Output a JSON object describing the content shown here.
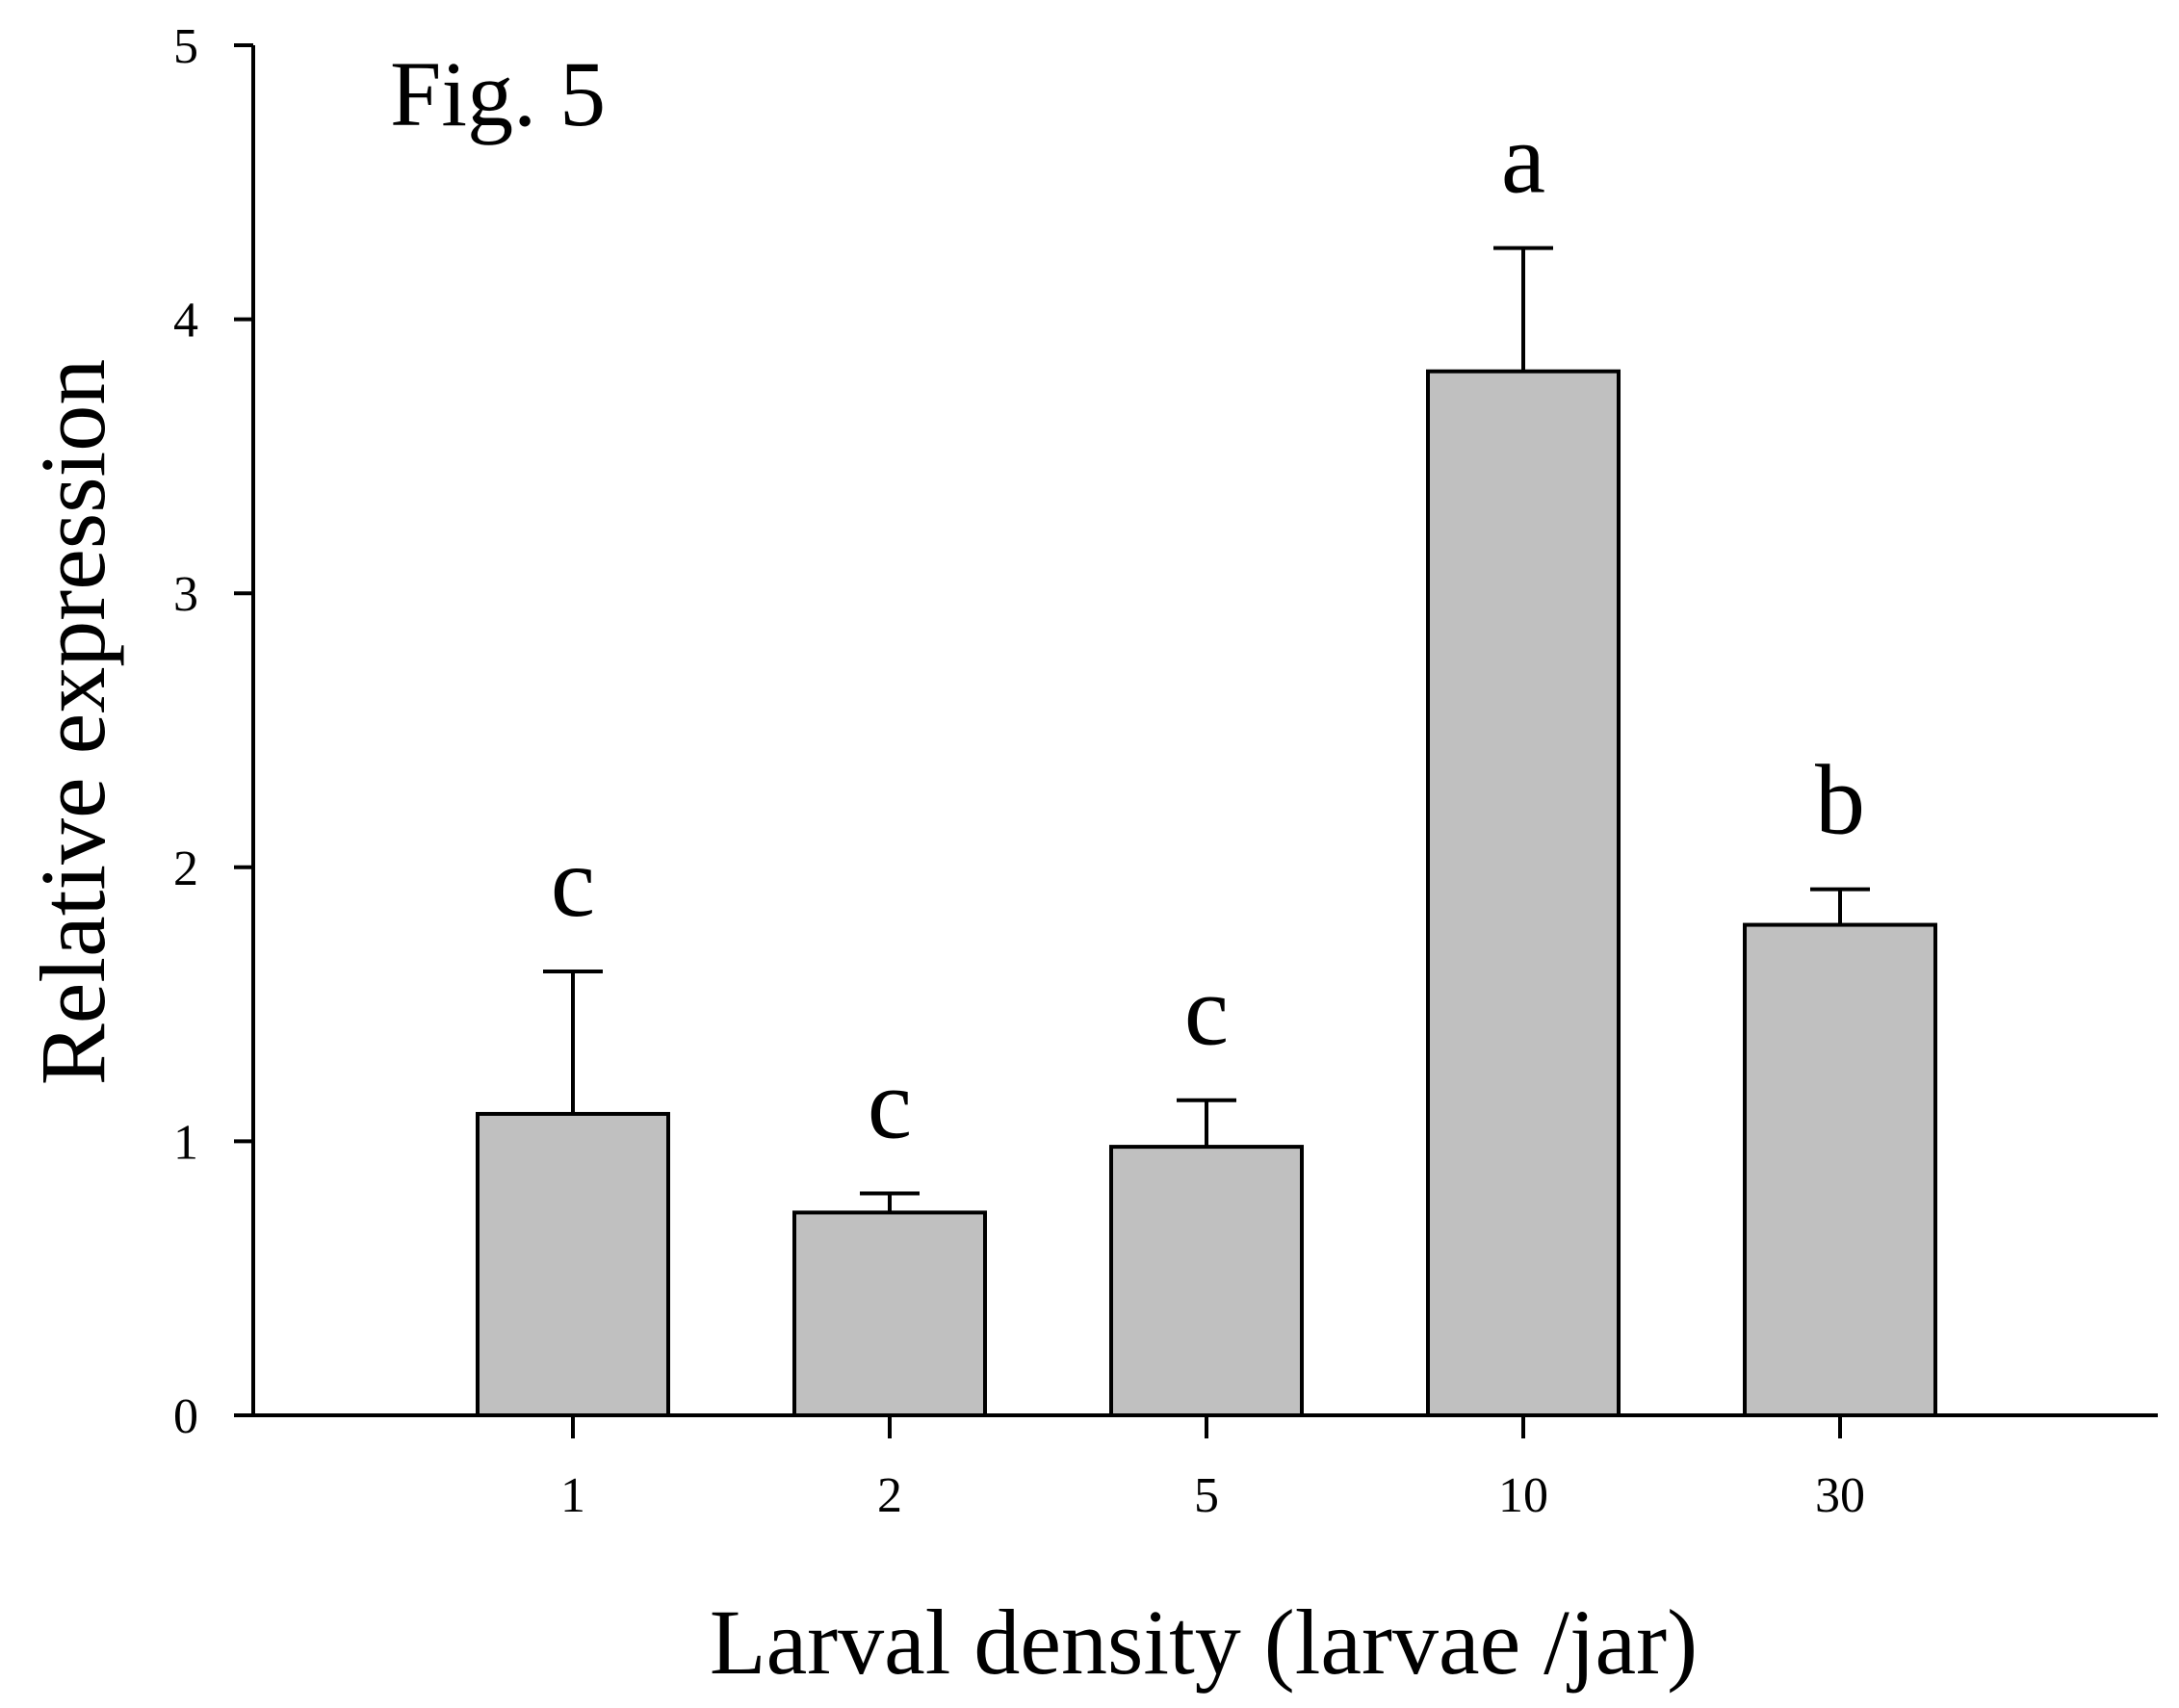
{
  "figure_label": "Fig. 5",
  "chart_data": {
    "type": "bar",
    "categories": [
      "1",
      "2",
      "5",
      "10",
      "30"
    ],
    "values": [
      1.1,
      0.74,
      0.98,
      3.81,
      1.79
    ],
    "error_upper": [
      0.52,
      0.07,
      0.17,
      0.45,
      0.13
    ],
    "significance_letters": [
      "c",
      "c",
      "c",
      "a",
      "b"
    ],
    "xlabel": "Larval density (larvae /jar)",
    "ylabel": "Relative expression",
    "ylim": [
      0,
      5
    ],
    "yticks": [
      0,
      1,
      2,
      3,
      4,
      5
    ],
    "bar_color": "#c0c0c0",
    "grid": false
  }
}
